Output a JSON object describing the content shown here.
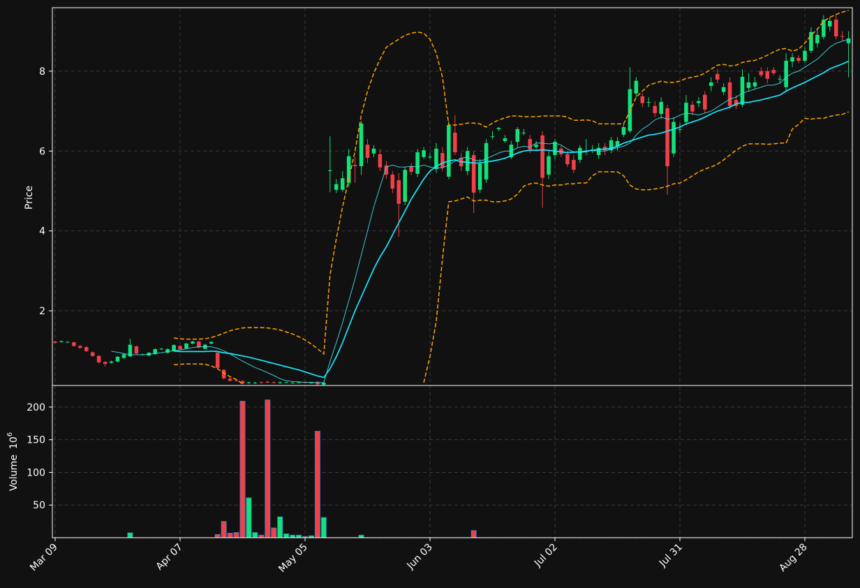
{
  "chart_data": {
    "type": "candlestick",
    "ylabel": "Price",
    "volume_label": "Volume",
    "volume_scale": {
      "base": "10",
      "exponent": "6"
    },
    "up_color": "#12e27a",
    "down_color": "#f0404a",
    "volume_edge_color": "#3d7fc4",
    "grid": true,
    "xlim": [
      -0.45,
      127.6
    ],
    "xticks": [
      {
        "value": 0,
        "label": "Mar 09"
      },
      {
        "value": 20,
        "label": "Apr 07"
      },
      {
        "value": 40,
        "label": "May 05"
      },
      {
        "value": 60,
        "label": "Jun 03"
      },
      {
        "value": 80,
        "label": "Jul 02"
      },
      {
        "value": 100,
        "label": "Jul 31"
      },
      {
        "value": 120,
        "label": "Aug 28"
      }
    ],
    "ylim": [
      0.13,
      9.59
    ],
    "yticks": [
      2,
      4,
      6,
      8
    ],
    "volume_ylim": [
      0,
      233
    ],
    "volume_yticks": [
      50,
      100,
      150,
      200
    ],
    "open": [
      1.23,
      1.22,
      1.22,
      1.21,
      1.12,
      1.09,
      0.96,
      0.87,
      0.72,
      0.7,
      0.73,
      0.82,
      0.86,
      1.11,
      0.9,
      0.88,
      0.92,
      1.04,
      0.95,
      1.0,
      1.12,
      1.06,
      1.18,
      1.23,
      1.05,
      1.18,
      0.95,
      0.52,
      0.3,
      0.26,
      0.24,
      0.19,
      0.19,
      0.21,
      0.22,
      0.21,
      0.19,
      0.21,
      0.2,
      0.2,
      0.21,
      0.2,
      0.22,
      0.15,
      5.5,
      5.03,
      5.03,
      5.2,
      5.65,
      5.62,
      6.16,
      5.94,
      5.92,
      5.64,
      5.41,
      5.27,
      4.73,
      5.62,
      5.43,
      5.85,
      5.84,
      5.55,
      5.95,
      5.36,
      6.46,
      5.83,
      5.5,
      5.9,
      5.03,
      5.29,
      6.35,
      6.55,
      6.25,
      5.85,
      6.23,
      6.45,
      6.3,
      6.1,
      6.39,
      5.41,
      5.9,
      6.06,
      5.92,
      5.78,
      5.78,
      5.99,
      6.03,
      5.9,
      6.11,
      6.02,
      6.11,
      6.41,
      6.5,
      7.44,
      7.37,
      7.22,
      7.13,
      6.93,
      7.07,
      5.94,
      6.54,
      6.73,
      7.16,
      7.2,
      7.41,
      7.63,
      7.93,
      7.48,
      7.72,
      7.28,
      7.16,
      7.58,
      7.62,
      8.0,
      8.0,
      8.03,
      7.8,
      7.6,
      8.24,
      8.33,
      8.26,
      8.51,
      8.7,
      8.86,
      9.12,
      9.29,
      8.88,
      8.7
    ],
    "high": [
      1.25,
      1.26,
      1.24,
      1.23,
      1.14,
      1.11,
      0.98,
      0.89,
      0.74,
      0.75,
      0.87,
      0.93,
      1.3,
      1.13,
      0.93,
      0.97,
      1.06,
      1.07,
      1.06,
      1.16,
      1.14,
      1.2,
      1.25,
      1.25,
      1.17,
      1.24,
      0.97,
      0.54,
      0.32,
      0.28,
      0.26,
      0.22,
      0.22,
      0.23,
      0.25,
      0.23,
      0.23,
      0.23,
      0.22,
      0.23,
      0.23,
      0.22,
      0.24,
      0.22,
      6.37,
      5.3,
      5.5,
      6.05,
      5.85,
      6.75,
      6.3,
      6.15,
      6.05,
      5.75,
      5.5,
      5.45,
      5.6,
      5.7,
      6.05,
      6.1,
      5.95,
      6.2,
      6.1,
      6.75,
      6.9,
      5.95,
      6.1,
      6.0,
      5.8,
      6.3,
      6.5,
      6.6,
      6.4,
      6.25,
      6.6,
      6.55,
      6.4,
      6.25,
      6.5,
      6.0,
      6.3,
      6.15,
      6.0,
      5.9,
      6.15,
      6.3,
      6.15,
      6.2,
      6.2,
      6.35,
      6.35,
      6.7,
      8.1,
      7.85,
      7.45,
      7.35,
      7.25,
      7.35,
      7.15,
      6.85,
      6.7,
      7.4,
      7.25,
      7.35,
      7.5,
      7.85,
      8.05,
      7.7,
      7.85,
      7.4,
      8.05,
      7.95,
      7.85,
      8.1,
      8.1,
      8.1,
      7.9,
      8.45,
      8.45,
      8.4,
      8.6,
      9.1,
      9.05,
      9.4,
      9.35,
      9.4,
      9.0,
      9.0
    ],
    "low": [
      1.18,
      1.2,
      1.2,
      1.1,
      1.05,
      0.97,
      0.85,
      0.68,
      0.6,
      0.68,
      0.71,
      0.8,
      0.84,
      0.9,
      0.88,
      0.86,
      0.9,
      1.02,
      0.93,
      0.98,
      1.02,
      1.04,
      1.16,
      1.06,
      1.03,
      1.16,
      0.55,
      0.28,
      0.23,
      0.23,
      0.16,
      0.17,
      0.17,
      0.18,
      0.19,
      0.18,
      0.17,
      0.19,
      0.18,
      0.18,
      0.18,
      0.18,
      0.14,
      0.13,
      4.97,
      4.95,
      4.98,
      5.1,
      5.2,
      5.4,
      5.7,
      5.85,
      5.5,
      5.3,
      4.95,
      3.85,
      4.65,
      5.4,
      5.35,
      5.8,
      5.8,
      5.45,
      5.5,
      5.3,
      5.9,
      5.5,
      5.4,
      4.45,
      4.95,
      5.2,
      6.3,
      6.5,
      6.2,
      5.8,
      6.1,
      6.4,
      5.95,
      6.05,
      4.58,
      5.3,
      5.8,
      5.85,
      5.6,
      5.45,
      5.7,
      5.9,
      5.95,
      5.8,
      5.9,
      5.95,
      6.0,
      6.35,
      6.45,
      7.35,
      7.1,
      7.1,
      6.85,
      6.8,
      4.9,
      5.85,
      6.45,
      6.65,
      6.9,
      7.1,
      6.95,
      7.5,
      7.7,
      7.4,
      7.05,
      7.05,
      7.1,
      7.5,
      7.55,
      7.85,
      7.7,
      7.9,
      7.7,
      7.5,
      8.1,
      8.2,
      8.2,
      8.45,
      8.6,
      8.8,
      9.0,
      8.8,
      8.75,
      7.85
    ],
    "close": [
      1.2,
      1.24,
      1.22,
      1.12,
      1.07,
      0.99,
      0.87,
      0.71,
      0.67,
      0.73,
      0.85,
      0.91,
      1.15,
      0.93,
      0.91,
      0.95,
      1.04,
      1.05,
      1.04,
      1.14,
      1.04,
      1.18,
      1.23,
      1.08,
      1.15,
      1.22,
      0.57,
      0.31,
      0.25,
      0.25,
      0.18,
      0.21,
      0.2,
      0.2,
      0.21,
      0.2,
      0.21,
      0.21,
      0.2,
      0.21,
      0.2,
      0.2,
      0.16,
      0.2,
      5.52,
      5.17,
      5.32,
      5.87,
      5.62,
      6.69,
      5.83,
      6.06,
      5.59,
      5.41,
      5.06,
      4.68,
      5.53,
      5.48,
      5.97,
      6.02,
      5.86,
      6.06,
      5.59,
      6.65,
      5.97,
      5.62,
      6.0,
      4.96,
      5.68,
      6.2,
      6.37,
      6.58,
      6.32,
      6.16,
      6.55,
      6.46,
      6.04,
      6.16,
      5.33,
      5.87,
      6.23,
      5.92,
      5.67,
      5.53,
      6.08,
      6.0,
      6.04,
      6.08,
      6.02,
      6.27,
      6.25,
      6.6,
      7.55,
      7.76,
      7.2,
      7.23,
      6.95,
      7.23,
      5.62,
      6.73,
      6.55,
      7.21,
      6.99,
      7.25,
      7.04,
      7.72,
      7.79,
      7.6,
      7.13,
      7.13,
      7.86,
      7.72,
      7.72,
      7.9,
      7.81,
      7.95,
      7.81,
      8.26,
      8.35,
      8.26,
      8.51,
      8.98,
      8.91,
      9.29,
      9.26,
      8.87,
      8.86,
      8.82
    ],
    "volume": [
      0.2,
      0.2,
      0.2,
      0.2,
      0.2,
      0.2,
      0.2,
      0.2,
      0.2,
      0.2,
      0.2,
      0.2,
      7.5,
      0.2,
      0.2,
      0.2,
      0.2,
      0.2,
      0.2,
      0.2,
      0.2,
      0.2,
      0.2,
      0.2,
      0.2,
      0.2,
      5,
      25,
      7,
      8,
      209,
      61,
      8,
      4,
      211,
      15,
      32,
      6,
      4,
      4,
      2,
      3,
      163,
      31,
      0.3,
      0.3,
      0.3,
      0.3,
      0.3,
      4,
      0.3,
      0.3,
      0.3,
      0.3,
      0.3,
      0.3,
      0.3,
      0.3,
      0.3,
      0.3,
      0.3,
      0.3,
      0.3,
      0.3,
      0.3,
      0.3,
      0.3,
      11,
      0.3,
      0.3,
      0.3,
      0.3,
      0.3,
      0.3,
      0.3,
      0.3,
      0.3,
      0.3,
      0.3,
      0.3,
      0.3,
      0.3,
      0.3,
      0.3,
      0.3,
      0.3,
      0.3,
      0.3,
      0.3,
      0.3,
      0.3,
      0.3,
      0.3,
      0.3,
      0.3,
      0.3,
      0.3,
      0.3,
      0.3,
      0.3,
      0.3,
      0.3,
      0.3,
      0.3,
      0.3,
      0.3,
      0.3,
      0.3,
      0.3,
      0.3,
      0.3,
      0.3,
      0.3,
      0.3,
      0.3,
      0.3,
      0.3,
      0.3,
      0.3,
      0.3,
      0.3,
      0.3,
      0.3,
      0.3,
      0.3,
      0.3,
      0.3,
      0.3
    ],
    "lines": [
      {
        "color": "#3fe0e8",
        "width": 0.9,
        "dashed": false,
        "values": [
          null,
          null,
          null,
          null,
          null,
          null,
          null,
          null,
          null,
          0.99,
          0.96,
          0.93,
          0.9,
          0.9,
          0.9,
          0.91,
          0.93,
          0.95,
          0.98,
          1.0,
          1.02,
          1.05,
          1.08,
          1.1,
          1.1,
          1.1,
          1.06,
          1.0,
          0.92,
          0.83,
          0.74,
          0.66,
          0.58,
          0.52,
          0.45,
          0.38,
          0.3,
          0.25,
          0.23,
          0.22,
          0.21,
          0.21,
          0.2,
          0.2,
          0.73,
          1.2,
          1.7,
          2.25,
          2.8,
          3.4,
          4.0,
          4.6,
          5.1,
          5.6,
          5.65,
          5.6,
          5.6,
          5.62,
          5.6,
          5.65,
          5.6,
          5.58,
          5.58,
          5.65,
          5.75,
          5.82,
          5.85,
          5.78,
          5.75,
          5.8,
          5.88,
          5.95,
          6.0,
          6.0,
          6.08,
          6.12,
          6.1,
          6.2,
          6.2,
          6.18,
          6.2,
          6.15,
          6.05,
          5.98,
          5.96,
          5.98,
          6.02,
          6.0,
          6.0,
          6.05,
          6.08,
          6.12,
          6.2,
          6.4,
          6.55,
          6.65,
          6.78,
          6.85,
          6.8,
          6.82,
          6.9,
          6.95,
          6.93,
          6.9,
          6.95,
          7.0,
          7.1,
          7.2,
          7.3,
          7.35,
          7.45,
          7.5,
          7.55,
          7.6,
          7.65,
          7.65,
          7.7,
          7.85,
          7.95,
          8.0,
          8.1,
          8.2,
          8.3,
          8.45,
          8.6,
          8.7,
          8.75,
          8.8
        ]
      },
      {
        "color": "#19e8ff",
        "width": 1.7,
        "dashed": false,
        "values": [
          null,
          null,
          null,
          null,
          null,
          null,
          null,
          null,
          null,
          null,
          null,
          null,
          null,
          null,
          null,
          null,
          null,
          null,
          null,
          0.99,
          0.98,
          0.98,
          0.98,
          0.98,
          0.98,
          0.99,
          0.98,
          0.95,
          0.93,
          0.9,
          0.87,
          0.84,
          0.8,
          0.76,
          0.72,
          0.68,
          0.64,
          0.6,
          0.56,
          0.52,
          0.47,
          0.42,
          0.37,
          0.33,
          0.55,
          0.85,
          1.2,
          1.6,
          2.0,
          2.35,
          2.7,
          3.05,
          3.35,
          3.6,
          3.9,
          4.2,
          4.5,
          4.8,
          5.05,
          5.3,
          5.5,
          5.62,
          5.7,
          5.75,
          5.78,
          5.73,
          5.72,
          5.7,
          5.7,
          5.73,
          5.75,
          5.78,
          5.82,
          5.88,
          5.95,
          6.0,
          6.02,
          6.02,
          6.03,
          6.02,
          6.0,
          5.98,
          5.96,
          5.97,
          5.98,
          6.0,
          6.02,
          6.04,
          6.05,
          6.07,
          6.12,
          6.2,
          6.25,
          6.3,
          6.35,
          6.4,
          6.42,
          6.45,
          6.5,
          6.55,
          6.6,
          6.68,
          6.73,
          6.78,
          6.85,
          6.93,
          7.0,
          7.05,
          7.1,
          7.18,
          7.22,
          7.22,
          7.25,
          7.28,
          7.32,
          7.36,
          7.4,
          7.5,
          7.58,
          7.65,
          7.72,
          7.8,
          7.88,
          7.96,
          8.06,
          8.12,
          8.18,
          8.25
        ]
      },
      {
        "color": "#ffa500",
        "width": 1.5,
        "dashed": true,
        "values": [
          null,
          null,
          null,
          null,
          null,
          null,
          null,
          null,
          null,
          null,
          null,
          null,
          null,
          null,
          null,
          null,
          null,
          null,
          null,
          1.32,
          1.3,
          1.29,
          1.29,
          1.29,
          1.3,
          1.33,
          1.38,
          1.44,
          1.5,
          1.54,
          1.57,
          1.58,
          1.58,
          1.58,
          1.57,
          1.55,
          1.52,
          1.47,
          1.42,
          1.35,
          1.27,
          1.17,
          1.05,
          0.92,
          2.9,
          3.8,
          4.6,
          5.3,
          6.0,
          6.9,
          7.5,
          7.95,
          8.3,
          8.6,
          8.7,
          8.8,
          8.9,
          8.95,
          8.98,
          8.95,
          8.8,
          8.45,
          7.85,
          6.65,
          6.65,
          6.67,
          6.7,
          6.7,
          6.68,
          6.6,
          6.7,
          6.78,
          6.83,
          6.88,
          6.88,
          6.86,
          6.86,
          6.86,
          6.88,
          6.88,
          6.88,
          6.88,
          6.85,
          6.77,
          6.77,
          6.78,
          6.76,
          6.68,
          6.68,
          6.68,
          6.68,
          6.68,
          7.0,
          7.35,
          7.5,
          7.65,
          7.7,
          7.75,
          7.72,
          7.72,
          7.75,
          7.82,
          7.85,
          7.88,
          7.95,
          8.05,
          8.15,
          8.17,
          8.13,
          8.15,
          8.22,
          8.25,
          8.27,
          8.33,
          8.4,
          8.48,
          8.55,
          8.57,
          8.5,
          8.55,
          8.7,
          8.9,
          9.05,
          9.25,
          9.35,
          9.42,
          9.48,
          9.52
        ]
      },
      {
        "color": "#ffa500",
        "width": 1.5,
        "dashed": true,
        "values": [
          null,
          null,
          null,
          null,
          null,
          null,
          null,
          null,
          null,
          null,
          null,
          null,
          null,
          null,
          null,
          null,
          null,
          null,
          null,
          0.65,
          0.66,
          0.67,
          0.67,
          0.67,
          0.66,
          0.62,
          0.55,
          0.44,
          0.35,
          0.28,
          0.17,
          null,
          null,
          null,
          null,
          null,
          null,
          null,
          null,
          null,
          null,
          null,
          null,
          null,
          null,
          null,
          null,
          null,
          null,
          null,
          null,
          null,
          null,
          null,
          null,
          null,
          null,
          null,
          null,
          0.2,
          0.86,
          1.74,
          3.31,
          4.73,
          4.75,
          4.8,
          4.85,
          4.75,
          4.77,
          4.77,
          4.73,
          4.73,
          4.75,
          4.8,
          4.92,
          5.12,
          5.18,
          5.2,
          5.15,
          5.12,
          5.15,
          5.15,
          5.18,
          5.18,
          5.2,
          5.2,
          5.38,
          5.48,
          5.48,
          5.48,
          5.48,
          5.38,
          5.15,
          5.05,
          5.03,
          5.03,
          5.05,
          5.08,
          5.12,
          5.18,
          5.2,
          5.28,
          5.38,
          5.48,
          5.55,
          5.6,
          5.67,
          5.78,
          5.9,
          6.02,
          6.12,
          6.18,
          6.18,
          6.18,
          6.17,
          6.18,
          6.2,
          6.2,
          6.55,
          6.67,
          6.82,
          6.8,
          6.82,
          6.82,
          6.87,
          6.9,
          6.92,
          6.98
        ]
      }
    ]
  }
}
